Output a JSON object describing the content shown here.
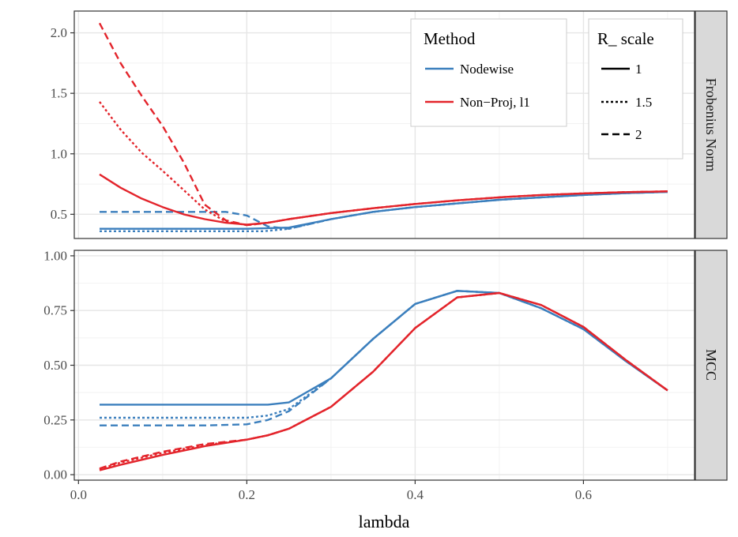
{
  "chart_data": {
    "type": "line",
    "xlabel": "lambda",
    "xlim": [
      -0.005,
      0.732
    ],
    "x_ticks": [
      "0.0",
      "0.2",
      "0.4",
      "0.6"
    ],
    "x_tick_values": [
      0.0,
      0.2,
      0.4,
      0.6
    ],
    "colors": {
      "Nodewise": "#3b7fbd",
      "Non-Proj, l1": "#e3242b"
    },
    "legend": {
      "method_title": "Method",
      "methods": [
        "Nodewise",
        "Non−Proj, l1"
      ],
      "scale_title": "R_ scale",
      "scales": [
        "1",
        "1.5",
        "2"
      ]
    },
    "panels": [
      {
        "strip": "Frobenius Norm",
        "ylim": [
          0.3,
          2.18
        ],
        "y_ticks": [
          "0.5",
          "1.0",
          "1.5",
          "2.0"
        ],
        "y_tick_values": [
          0.5,
          1.0,
          1.5,
          2.0
        ],
        "series": [
          {
            "method": "Nodewise",
            "scale": "1",
            "x": [
              0.025,
              0.05,
              0.1,
              0.15,
              0.2,
              0.25,
              0.3,
              0.35,
              0.4,
              0.45,
              0.5,
              0.55,
              0.6,
              0.65,
              0.7
            ],
            "y": [
              0.38,
              0.38,
              0.38,
              0.38,
              0.38,
              0.39,
              0.46,
              0.52,
              0.56,
              0.59,
              0.62,
              0.64,
              0.66,
              0.675,
              0.685
            ]
          },
          {
            "method": "Nodewise",
            "scale": "1.5",
            "x": [
              0.025,
              0.05,
              0.1,
              0.15,
              0.2,
              0.22,
              0.25,
              0.3,
              0.35,
              0.4,
              0.45,
              0.5,
              0.55,
              0.6,
              0.65,
              0.7
            ],
            "y": [
              0.36,
              0.36,
              0.36,
              0.36,
              0.36,
              0.36,
              0.38,
              0.46,
              0.52,
              0.56,
              0.59,
              0.62,
              0.64,
              0.66,
              0.675,
              0.685
            ]
          },
          {
            "method": "Nodewise",
            "scale": "2",
            "x": [
              0.025,
              0.05,
              0.1,
              0.15,
              0.175,
              0.2,
              0.225,
              0.25,
              0.3,
              0.35,
              0.4,
              0.45,
              0.5,
              0.55,
              0.6,
              0.65,
              0.7
            ],
            "y": [
              0.52,
              0.52,
              0.52,
              0.52,
              0.52,
              0.49,
              0.4,
              0.38,
              0.46,
              0.52,
              0.56,
              0.59,
              0.62,
              0.64,
              0.66,
              0.675,
              0.685
            ]
          },
          {
            "method": "Non-Proj, l1",
            "scale": "1",
            "x": [
              0.025,
              0.05,
              0.075,
              0.1,
              0.125,
              0.15,
              0.175,
              0.2,
              0.225,
              0.25,
              0.3,
              0.35,
              0.4,
              0.45,
              0.5,
              0.55,
              0.6,
              0.65,
              0.7
            ],
            "y": [
              0.83,
              0.72,
              0.63,
              0.56,
              0.5,
              0.46,
              0.43,
              0.415,
              0.43,
              0.46,
              0.51,
              0.55,
              0.585,
              0.615,
              0.64,
              0.66,
              0.673,
              0.683,
              0.69
            ]
          },
          {
            "method": "Non-Proj, l1",
            "scale": "1.5",
            "x": [
              0.025,
              0.05,
              0.075,
              0.1,
              0.125,
              0.15,
              0.175,
              0.2,
              0.225,
              0.25,
              0.3,
              0.35,
              0.4,
              0.45,
              0.5,
              0.55,
              0.6,
              0.65,
              0.7
            ],
            "y": [
              1.43,
              1.2,
              1.01,
              0.86,
              0.7,
              0.54,
              0.44,
              0.41,
              0.43,
              0.46,
              0.51,
              0.55,
              0.585,
              0.615,
              0.64,
              0.66,
              0.673,
              0.683,
              0.69
            ]
          },
          {
            "method": "Non-Proj, l1",
            "scale": "2",
            "x": [
              0.025,
              0.05,
              0.075,
              0.1,
              0.125,
              0.15,
              0.175,
              0.2,
              0.225,
              0.25,
              0.3,
              0.35,
              0.4,
              0.45,
              0.5,
              0.55,
              0.6,
              0.65,
              0.7
            ],
            "y": [
              2.08,
              1.75,
              1.48,
              1.23,
              0.93,
              0.58,
              0.45,
              0.41,
              0.43,
              0.46,
              0.51,
              0.55,
              0.585,
              0.615,
              0.64,
              0.66,
              0.673,
              0.683,
              0.69
            ]
          }
        ]
      },
      {
        "strip": "MCC",
        "ylim": [
          -0.025,
          1.025
        ],
        "y_ticks": [
          "0.00",
          "0.25",
          "0.50",
          "0.75",
          "1.00"
        ],
        "y_tick_values": [
          0.0,
          0.25,
          0.5,
          0.75,
          1.0
        ],
        "series": [
          {
            "method": "Nodewise",
            "scale": "1",
            "x": [
              0.025,
              0.05,
              0.1,
              0.15,
              0.2,
              0.225,
              0.25,
              0.3,
              0.35,
              0.4,
              0.45,
              0.5,
              0.55,
              0.6,
              0.65,
              0.7
            ],
            "y": [
              0.32,
              0.32,
              0.32,
              0.32,
              0.32,
              0.32,
              0.33,
              0.44,
              0.62,
              0.78,
              0.84,
              0.83,
              0.76,
              0.665,
              0.52,
              0.385
            ]
          },
          {
            "method": "Nodewise",
            "scale": "1.5",
            "x": [
              0.025,
              0.05,
              0.1,
              0.15,
              0.2,
              0.225,
              0.25,
              0.3,
              0.35,
              0.4,
              0.45,
              0.5,
              0.55,
              0.6,
              0.65,
              0.7
            ],
            "y": [
              0.26,
              0.26,
              0.26,
              0.26,
              0.26,
              0.27,
              0.3,
              0.44,
              0.62,
              0.78,
              0.84,
              0.83,
              0.76,
              0.665,
              0.52,
              0.385
            ]
          },
          {
            "method": "Nodewise",
            "scale": "2",
            "x": [
              0.025,
              0.05,
              0.1,
              0.15,
              0.2,
              0.225,
              0.25,
              0.3,
              0.35,
              0.4,
              0.45,
              0.5,
              0.55,
              0.6,
              0.65,
              0.7
            ],
            "y": [
              0.225,
              0.225,
              0.225,
              0.225,
              0.23,
              0.25,
              0.29,
              0.44,
              0.62,
              0.78,
              0.84,
              0.83,
              0.76,
              0.665,
              0.52,
              0.385
            ]
          },
          {
            "method": "Non-Proj, l1",
            "scale": "1",
            "x": [
              0.025,
              0.05,
              0.1,
              0.15,
              0.2,
              0.225,
              0.25,
              0.3,
              0.35,
              0.4,
              0.45,
              0.5,
              0.55,
              0.6,
              0.65,
              0.7
            ],
            "y": [
              0.02,
              0.045,
              0.09,
              0.13,
              0.16,
              0.18,
              0.21,
              0.31,
              0.47,
              0.67,
              0.81,
              0.83,
              0.775,
              0.675,
              0.525,
              0.385
            ]
          },
          {
            "method": "Non-Proj, l1",
            "scale": "1.5",
            "x": [
              0.025,
              0.05,
              0.1,
              0.15,
              0.2,
              0.225,
              0.25,
              0.3,
              0.35,
              0.4,
              0.45,
              0.5,
              0.55,
              0.6,
              0.65,
              0.7
            ],
            "y": [
              0.025,
              0.055,
              0.1,
              0.135,
              0.16,
              0.18,
              0.21,
              0.31,
              0.47,
              0.67,
              0.81,
              0.83,
              0.775,
              0.675,
              0.525,
              0.385
            ]
          },
          {
            "method": "Non-Proj, l1",
            "scale": "2",
            "x": [
              0.025,
              0.05,
              0.1,
              0.15,
              0.2,
              0.225,
              0.25,
              0.3,
              0.35,
              0.4,
              0.45,
              0.5,
              0.55,
              0.6,
              0.65,
              0.7
            ],
            "y": [
              0.028,
              0.06,
              0.105,
              0.14,
              0.16,
              0.18,
              0.21,
              0.31,
              0.47,
              0.67,
              0.81,
              0.83,
              0.775,
              0.675,
              0.525,
              0.385
            ]
          }
        ]
      }
    ]
  }
}
